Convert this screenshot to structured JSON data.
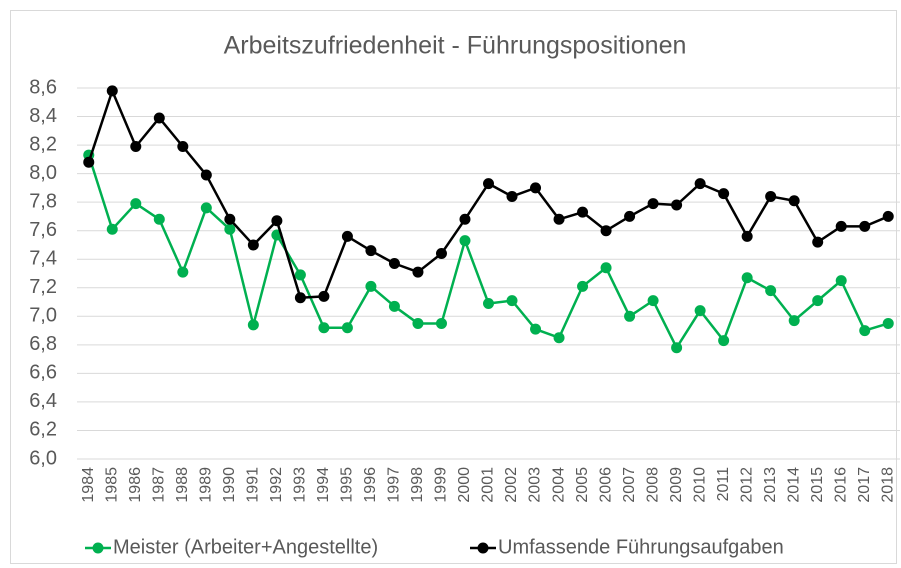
{
  "chart_data": {
    "type": "line",
    "title": "Arbeitszufriedenheit - Führungspositionen",
    "categories": [
      "1984",
      "1985",
      "1986",
      "1987",
      "1988",
      "1989",
      "1990",
      "1991",
      "1992",
      "1993",
      "1994",
      "1995",
      "1996",
      "1997",
      "1998",
      "1999",
      "2000",
      "2001",
      "2002",
      "2003",
      "2004",
      "2005",
      "2006",
      "2007",
      "2008",
      "2009",
      "2010",
      "2011",
      "2012",
      "2013",
      "2014",
      "2015",
      "2016",
      "2017",
      "2018"
    ],
    "series": [
      {
        "name": "Meister (Arbeiter+Angestellte)",
        "color": "#00b050",
        "values": [
          8.13,
          7.61,
          7.79,
          7.68,
          7.31,
          7.76,
          7.61,
          6.94,
          7.57,
          7.29,
          6.92,
          6.92,
          7.21,
          7.07,
          6.95,
          6.95,
          7.53,
          7.09,
          7.11,
          6.91,
          6.85,
          7.21,
          7.34,
          7.0,
          7.11,
          6.78,
          7.04,
          6.83,
          7.27,
          7.18,
          6.97,
          7.11,
          7.25,
          6.9,
          6.95
        ]
      },
      {
        "name": "Umfassende Führungsaufgaben",
        "color": "#000000",
        "values": [
          8.08,
          8.58,
          8.19,
          8.39,
          8.19,
          7.99,
          7.68,
          7.5,
          7.67,
          7.13,
          7.14,
          7.56,
          7.46,
          7.37,
          7.31,
          7.44,
          7.68,
          7.93,
          7.84,
          7.9,
          7.68,
          7.73,
          7.6,
          7.7,
          7.79,
          7.78,
          7.93,
          7.86,
          7.56,
          7.84,
          7.81,
          7.52,
          7.63,
          7.63,
          7.7
        ]
      }
    ],
    "ylim": [
      6.0,
      8.6
    ],
    "yticks": [
      {
        "value": 6.0,
        "label": "6,0"
      },
      {
        "value": 6.2,
        "label": "6,2"
      },
      {
        "value": 6.4,
        "label": "6,4"
      },
      {
        "value": 6.6,
        "label": "6,6"
      },
      {
        "value": 6.8,
        "label": "6,8"
      },
      {
        "value": 7.0,
        "label": "7,0"
      },
      {
        "value": 7.2,
        "label": "7,2"
      },
      {
        "value": 7.4,
        "label": "7,4"
      },
      {
        "value": 7.6,
        "label": "7,6"
      },
      {
        "value": 7.8,
        "label": "7,8"
      },
      {
        "value": 8.0,
        "label": "8,0"
      },
      {
        "value": 8.2,
        "label": "8,2"
      },
      {
        "value": 8.4,
        "label": "8,4"
      },
      {
        "value": 8.6,
        "label": "8,6"
      }
    ],
    "grid": true,
    "legend": "bottom"
  }
}
